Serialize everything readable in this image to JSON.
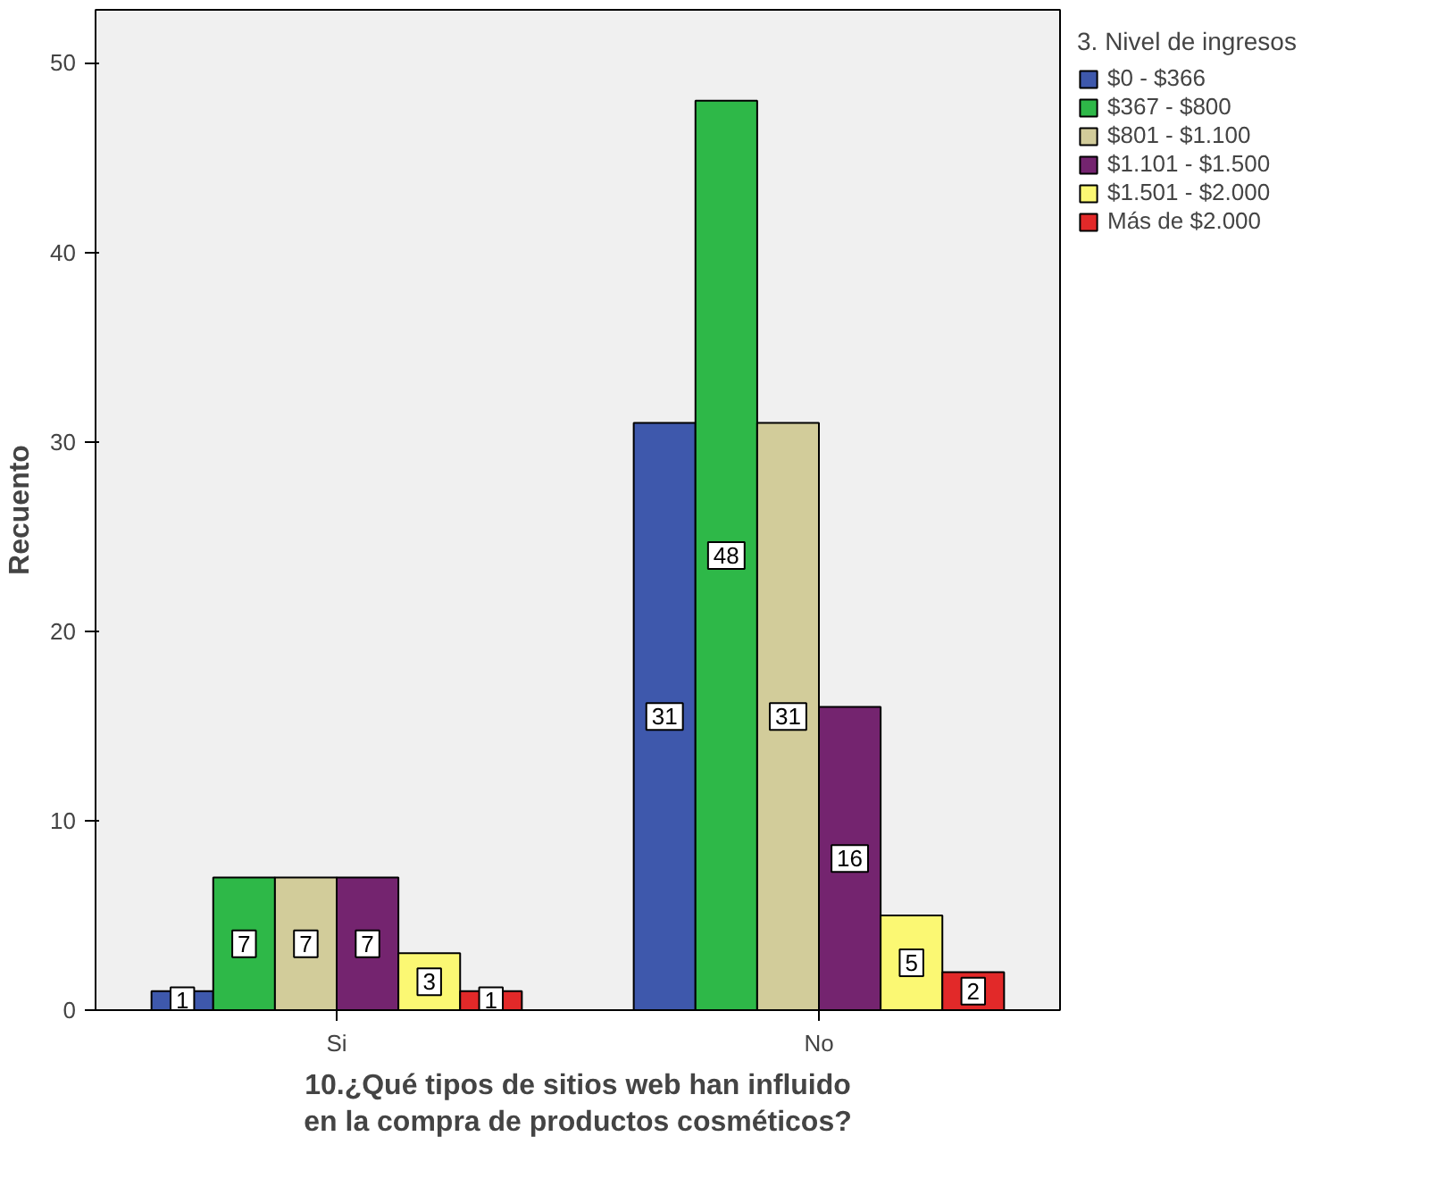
{
  "chart_data": {
    "type": "bar",
    "xlabel": "10.¿Qué tipos de sitios web han influido en la compra de productos cosméticos?",
    "ylabel": "Recuento",
    "legend_title": "3. Nivel de ingresos",
    "categories": [
      "Si",
      "No"
    ],
    "series": [
      {
        "name": "$0 - $366",
        "color": "#3e58ac",
        "values": [
          1,
          31
        ]
      },
      {
        "name": "$367 - $800",
        "color": "#2eb848",
        "values": [
          7,
          48
        ]
      },
      {
        "name": "$801 - $1.100",
        "color": "#d2cc9a",
        "values": [
          7,
          31
        ]
      },
      {
        "name": "$1.101 - $1.500",
        "color": "#74246f",
        "values": [
          7,
          16
        ]
      },
      {
        "name": "$1.501 - $2.000",
        "color": "#fbf873",
        "values": [
          3,
          5
        ]
      },
      {
        "name": "Más de $2.000",
        "color": "#e22929",
        "values": [
          1,
          2
        ]
      }
    ],
    "ylim": [
      0,
      52.8
    ],
    "yticks": [
      0,
      10,
      20,
      30,
      40,
      50
    ],
    "grid": false,
    "legend": "right",
    "data_labels": true
  }
}
